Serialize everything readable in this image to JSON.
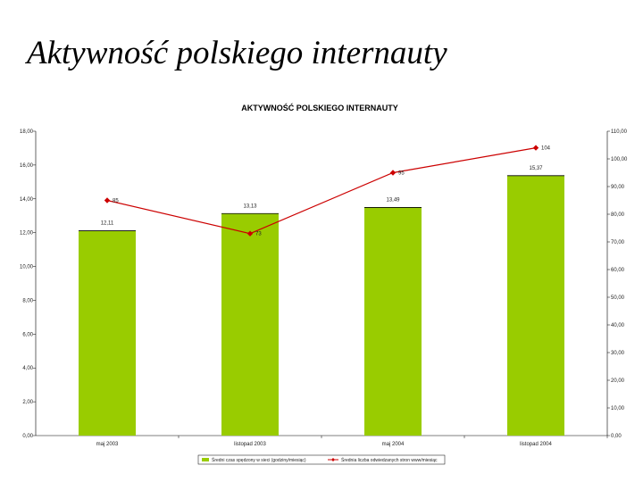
{
  "slide": {
    "title": "Aktywność polskiego internauty"
  },
  "chart_data": {
    "type": "bar+line",
    "title": "AKTYWNOŚĆ POLSKIEGO INTERNAUTY",
    "categories": [
      "maj 2003",
      "listopad 2003",
      "maj 2004",
      "listopad 2004"
    ],
    "series": [
      {
        "name": "Średni czas spędzony w sieci (godziny/miesiąc)",
        "type": "bar",
        "axis": "left",
        "color": "#99cc00",
        "values": [
          12.11,
          13.13,
          13.49,
          15.37
        ],
        "labels": [
          "12,11",
          "13,13",
          "13,49",
          "15,37"
        ]
      },
      {
        "name": "Średnia liczba odwiedzanych stron www/miesiąc",
        "type": "line",
        "axis": "right",
        "color": "#cc0000",
        "values": [
          85,
          73,
          95,
          104
        ],
        "labels": [
          "85",
          "73",
          "95",
          "104"
        ]
      }
    ],
    "y_left": {
      "ylim": [
        0,
        18
      ],
      "ticks": [
        0,
        2,
        4,
        6,
        8,
        10,
        12,
        14,
        16,
        18
      ],
      "tick_labels": [
        "0,00",
        "2,00",
        "4,00",
        "6,00",
        "8,00",
        "10,00",
        "12,00",
        "14,00",
        "16,00",
        "18,00"
      ]
    },
    "y_right": {
      "ylim": [
        0,
        110
      ],
      "ticks": [
        0,
        10,
        20,
        30,
        40,
        50,
        60,
        70,
        80,
        90,
        100,
        110
      ],
      "tick_labels": [
        "0,00",
        "10,00",
        "20,00",
        "30,00",
        "40,00",
        "50,00",
        "60,00",
        "70,00",
        "80,00",
        "90,00",
        "100,00",
        "110,00"
      ]
    },
    "grid": false,
    "legend_position": "bottom"
  }
}
